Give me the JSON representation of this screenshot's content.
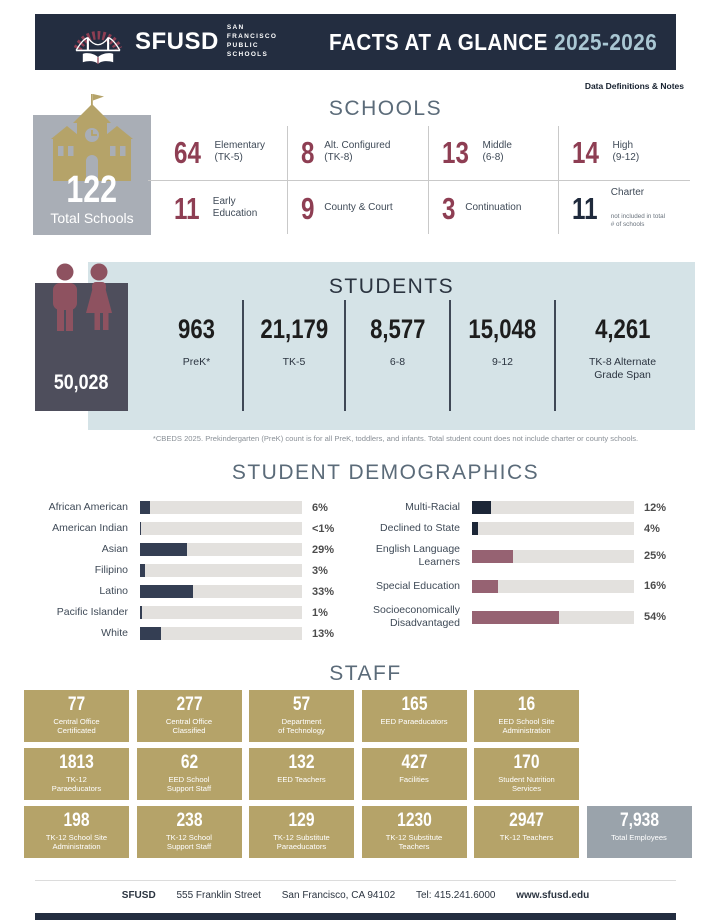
{
  "theme": {
    "navy": "#232d40",
    "maroon": "#8e3e53",
    "gold": "#b5a369",
    "slate_box": "#4e4e5c",
    "panel_blue": "#d5e3e7",
    "gray_box": "#a9aeb6",
    "bar_navy": "#343e53",
    "bar_dark_navy": "#1c2637",
    "bar_rose": "#966272",
    "bar_track": "#e3e1de",
    "total_gray": "#9aa3ab",
    "year_blue": "#a9c7d3"
  },
  "header": {
    "brand": "SFUSD",
    "brand_sub1": "SAN FRANCISCO",
    "brand_sub2": "PUBLIC SCHOOLS",
    "title": "FACTS AT A GLANCE",
    "year": "2025-2026"
  },
  "links": {
    "data_definitions": "Data Definitions & Notes"
  },
  "schools": {
    "title": "SCHOOLS",
    "total": "122",
    "total_label": "Total Schools",
    "stats": [
      {
        "value": "64",
        "label": "Elementary\n(TK-5)"
      },
      {
        "value": "8",
        "label": "Alt. Configured\n(TK-8)"
      },
      {
        "value": "13",
        "label": "Middle\n(6-8)"
      },
      {
        "value": "14",
        "label": "High\n(9-12)"
      },
      {
        "value": "11",
        "label": "Early\nEducation"
      },
      {
        "value": "9",
        "label": "County & Court"
      },
      {
        "value": "3",
        "label": "Continuation"
      },
      {
        "value": "11",
        "label": "Charter",
        "note": "not included in total\n# of schools"
      }
    ]
  },
  "students": {
    "title": "STUDENTS",
    "total": "50,028",
    "columns": [
      {
        "value": "963",
        "label": "PreK*"
      },
      {
        "value": "21,179",
        "label": "TK-5"
      },
      {
        "value": "8,577",
        "label": "6-8"
      },
      {
        "value": "15,048",
        "label": "9-12"
      },
      {
        "value": "4,261",
        "label": "TK-8 Alternate\nGrade Span"
      }
    ],
    "footnote": "*CBEDS 2025. Prekindergarten (PreK) count is for all PreK, toddlers, and infants. Total student count does not include charter or county schools."
  },
  "demographics": {
    "title": "STUDENT DEMOGRAPHICS",
    "type": "bar",
    "orientation": "horizontal",
    "axis_max": 100,
    "left": [
      {
        "label": "African American",
        "pct": "6%",
        "value": 6
      },
      {
        "label": "American Indian",
        "pct": "<1%",
        "value": 0.8
      },
      {
        "label": "Asian",
        "pct": "29%",
        "value": 29
      },
      {
        "label": "Filipino",
        "pct": "3%",
        "value": 3
      },
      {
        "label": "Latino",
        "pct": "33%",
        "value": 33
      },
      {
        "label": "Pacific Islander",
        "pct": "1%",
        "value": 1
      },
      {
        "label": "White",
        "pct": "13%",
        "value": 13
      }
    ],
    "right": [
      {
        "label": "Multi-Racial",
        "pct": "12%",
        "value": 12
      },
      {
        "label": "Declined to State",
        "pct": "4%",
        "value": 4
      },
      {
        "label": "English Language\nLearners",
        "pct": "25%",
        "value": 25
      },
      {
        "label": "Special Education",
        "pct": "16%",
        "value": 16
      },
      {
        "label": "Socioeconomically\nDisadvantaged",
        "pct": "54%",
        "value": 54
      }
    ]
  },
  "staff": {
    "title": "STAFF",
    "boxes": [
      {
        "value": "77",
        "label": "Central Office\nCertificated"
      },
      {
        "value": "277",
        "label": "Central Office\nClassified"
      },
      {
        "value": "57",
        "label": "Department\nof Technology"
      },
      {
        "value": "165",
        "label": "EED Paraeducators"
      },
      {
        "value": "16",
        "label": "EED School Site\nAdministration"
      },
      {
        "value": "1813",
        "label": "TK-12\nParaeducators"
      },
      {
        "value": "62",
        "label": "EED School\nSupport Staff"
      },
      {
        "value": "132",
        "label": "EED Teachers"
      },
      {
        "value": "427",
        "label": "Facilities"
      },
      {
        "value": "170",
        "label": "Student Nutrition\nServices"
      },
      {
        "value": "198",
        "label": "TK-12 School Site\nAdministration"
      },
      {
        "value": "238",
        "label": "TK-12 School\nSupport Staff"
      },
      {
        "value": "129",
        "label": "TK-12 Substitute\nParaeducators"
      },
      {
        "value": "1230",
        "label": "TK-12 Substitute\nTeachers"
      },
      {
        "value": "2947",
        "label": "TK-12 Teachers"
      }
    ],
    "total": {
      "value": "7,938",
      "label": "Total Employees"
    }
  },
  "footer": {
    "brand": "SFUSD",
    "address1": "555 Franklin Street",
    "address2": "San Francisco, CA 94102",
    "tel": "Tel: 415.241.6000",
    "url": "www.sfusd.edu"
  }
}
